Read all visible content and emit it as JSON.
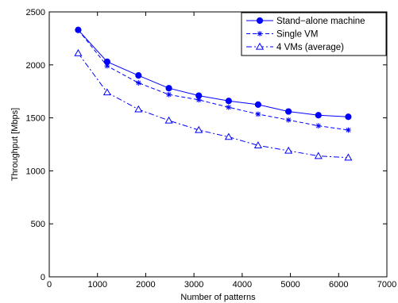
{
  "chart_data": {
    "type": "line",
    "xlabel": "Number of patterns",
    "ylabel": "Throughput [Mbps]",
    "xlim": [
      0,
      7000
    ],
    "ylim": [
      0,
      2500
    ],
    "xticks": [
      0,
      1000,
      2000,
      3000,
      4000,
      5000,
      6000,
      7000
    ],
    "yticks": [
      0,
      500,
      1000,
      1500,
      2000,
      2500
    ],
    "grid": false,
    "legend_position": "top-right",
    "series": [
      {
        "name": "Stand−alone machine",
        "line_style": "solid",
        "marker": "filled-circle",
        "color": "#0000ff",
        "x": [
          600,
          1200,
          1850,
          2480,
          3100,
          3720,
          4330,
          4960,
          5580,
          6200
        ],
        "y": [
          2330,
          2030,
          1900,
          1780,
          1710,
          1660,
          1625,
          1560,
          1525,
          1510
        ]
      },
      {
        "name": "Single VM",
        "line_style": "dashed",
        "marker": "asterisk",
        "color": "#0000ff",
        "x": [
          600,
          1200,
          1850,
          2480,
          3100,
          3720,
          4330,
          4960,
          5580,
          6200
        ],
        "y": [
          2330,
          1990,
          1830,
          1720,
          1670,
          1600,
          1535,
          1480,
          1425,
          1385
        ]
      },
      {
        "name": "4 VMs (average)",
        "line_style": "dash-dot",
        "marker": "triangle",
        "color": "#0000ff",
        "x": [
          600,
          1200,
          1850,
          2480,
          3100,
          3720,
          4330,
          4960,
          5580,
          6200
        ],
        "y": [
          2110,
          1740,
          1580,
          1475,
          1385,
          1320,
          1240,
          1190,
          1140,
          1125
        ]
      }
    ]
  }
}
